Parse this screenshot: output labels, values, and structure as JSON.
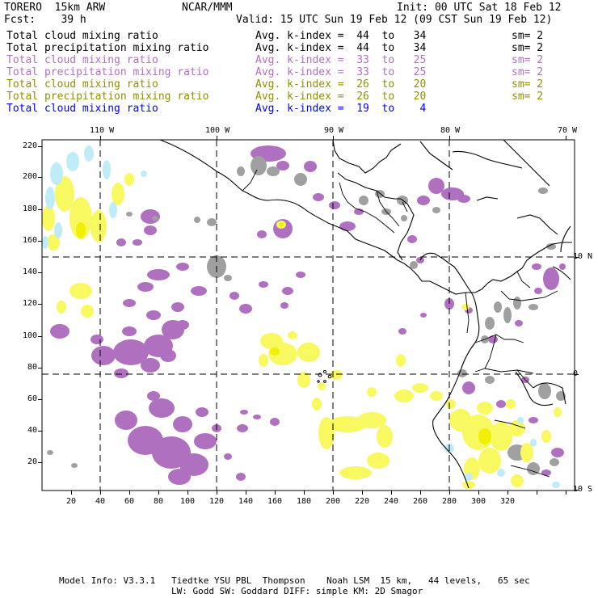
{
  "header": {
    "model": "TORERO  15km ARW",
    "org": "NCAR/MMM",
    "init": "Init: 00 UTC Sat 18 Feb 12",
    "fcst": "Fcst:    39 h",
    "valid": "Valid: 15 UTC Sun 19 Feb 12 (09 CST Sun 19 Feb 12)"
  },
  "legend": [
    {
      "name": "Total cloud mixing ratio",
      "avg": "Avg. k-index =  44  to   34",
      "sm": "sm= 2",
      "color": "#000000"
    },
    {
      "name": "Total precipitation mixing ratio",
      "avg": "Avg. k-index =  44  to   34",
      "sm": "sm= 2",
      "color": "#000000"
    },
    {
      "name": "Total cloud mixing ratio",
      "avg": "Avg. k-index =  33  to   25",
      "sm": "sm= 2",
      "color": "#b070c0"
    },
    {
      "name": "Total precipitation mixing ratio",
      "avg": "Avg. k-index =  33  to   25",
      "sm": "sm= 2",
      "color": "#b070c0"
    },
    {
      "name": "Total cloud mixing ratio",
      "avg": "Avg. k-index =  26  to   20",
      "sm": "sm= 2",
      "color": "#909000"
    },
    {
      "name": "Total precipitation mixing ratio",
      "avg": "Avg. k-index =  26  to   20",
      "sm": "sm= 2",
      "color": "#909000"
    },
    {
      "name": "Total cloud mixing ratio",
      "avg": "Avg. k-index =  19  to    4",
      "sm": "",
      "color": "#0000ff"
    }
  ],
  "map": {
    "lon_labels": [
      "110 W",
      "100 W",
      "90 W",
      "80 W",
      "70 W"
    ],
    "lat_labels": [
      "10 N",
      "0",
      "10 S"
    ],
    "x_ticks": [
      "20",
      "40",
      "60",
      "80",
      "100",
      "120",
      "140",
      "160",
      "180",
      "200",
      "220",
      "240",
      "260",
      "280",
      "300",
      "320"
    ],
    "y_ticks": [
      "220",
      "200",
      "180",
      "160",
      "140",
      "120",
      "100",
      "80",
      "60",
      "40",
      "20"
    ],
    "colors": {
      "gray": "#a0a0a0",
      "purple": "#b070c0",
      "yellow": "#f8f860",
      "light_blue": "#c0ecf8"
    }
  },
  "footer": {
    "line1": "Model Info: V3.3.1   Tiedtke YSU PBL  Thompson    Noah LSM  15 km,   44 levels,   65 sec",
    "line2": "LW: Godd SW: Goddard DIFF: simple KM: 2D Smagor"
  }
}
